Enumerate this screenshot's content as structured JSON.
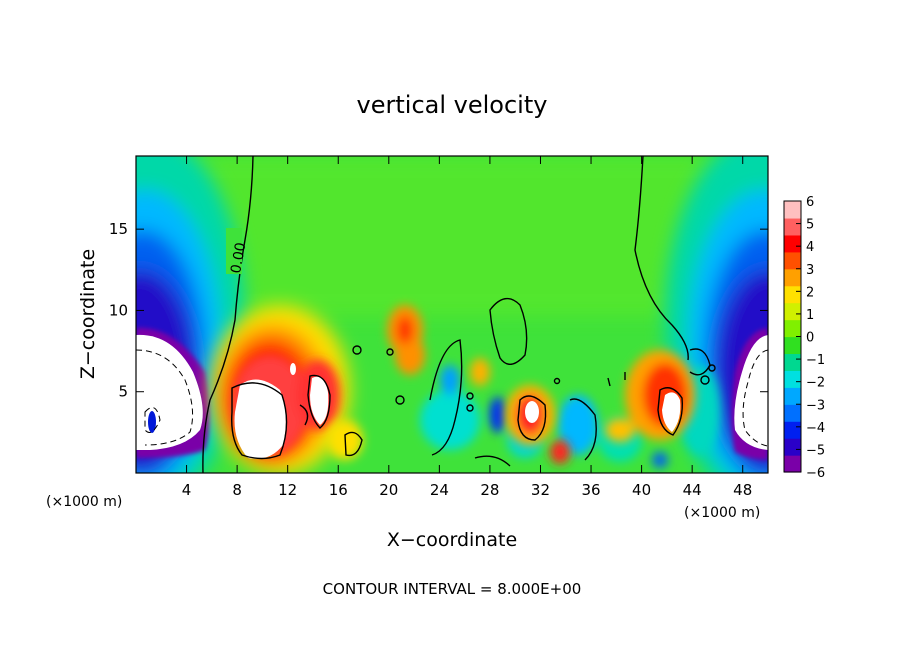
{
  "chart_data": {
    "type": "heatmap",
    "title": "vertical velocity",
    "xlabel": "X−coordinate",
    "ylabel": "Z−coordinate",
    "x_unit_left": "(×1000 m)",
    "x_unit_right": "(×1000 m)",
    "footer": "CONTOUR INTERVAL = 8.000E+00",
    "contour_label": "0.00",
    "xlim": [
      0,
      50
    ],
    "ylim": [
      0,
      19.5
    ],
    "x_ticks": [
      4,
      8,
      12,
      16,
      20,
      24,
      28,
      32,
      36,
      40,
      44,
      48
    ],
    "x_tick_labels": [
      "4",
      "8",
      "12",
      "16",
      "20",
      "24",
      "28",
      "32",
      "36",
      "40",
      "44",
      "48"
    ],
    "y_ticks": [
      5,
      10,
      15
    ],
    "y_tick_labels": [
      "5",
      "10",
      "15"
    ],
    "colorbar": {
      "min": -6,
      "max": 6,
      "ticks": [
        6,
        5,
        4,
        3,
        2,
        1,
        0,
        -1,
        -2,
        -3,
        -4,
        -5,
        -6
      ],
      "tick_labels": [
        "6",
        "5",
        "4",
        "3",
        "2",
        "1",
        "0",
        "−1",
        "−2",
        "−3",
        "−4",
        "−5",
        "−6"
      ],
      "colors": [
        "#7a00a8",
        "#2a00c8",
        "#0020f0",
        "#0070ff",
        "#00a8ff",
        "#00e0e0",
        "#00d890",
        "#30e020",
        "#80f000",
        "#d0f000",
        "#ffe000",
        "#ffa000",
        "#ff5000",
        "#ff0000",
        "#ff6060",
        "#ffc0c0"
      ]
    },
    "features": [
      {
        "name": "left downdraft core",
        "x": 1.5,
        "z": 4.5,
        "value": -6
      },
      {
        "name": "updraft 10 km",
        "x": 10.5,
        "z": 4.5,
        "value": 6
      },
      {
        "name": "updraft 14 km",
        "x": 14,
        "z": 5,
        "value": 5
      },
      {
        "name": "updraft 21 km",
        "x": 21.5,
        "z": 8.5,
        "value": 3
      },
      {
        "name": "updraft 31 km",
        "x": 31,
        "z": 3.7,
        "value": 5
      },
      {
        "name": "downdraft 29 km",
        "x": 29.3,
        "z": 3.5,
        "value": -4
      },
      {
        "name": "updraft 42 km",
        "x": 42,
        "z": 5.5,
        "value": 5
      },
      {
        "name": "right downdraft core",
        "x": 48.5,
        "z": 4.5,
        "value": -6
      }
    ]
  }
}
